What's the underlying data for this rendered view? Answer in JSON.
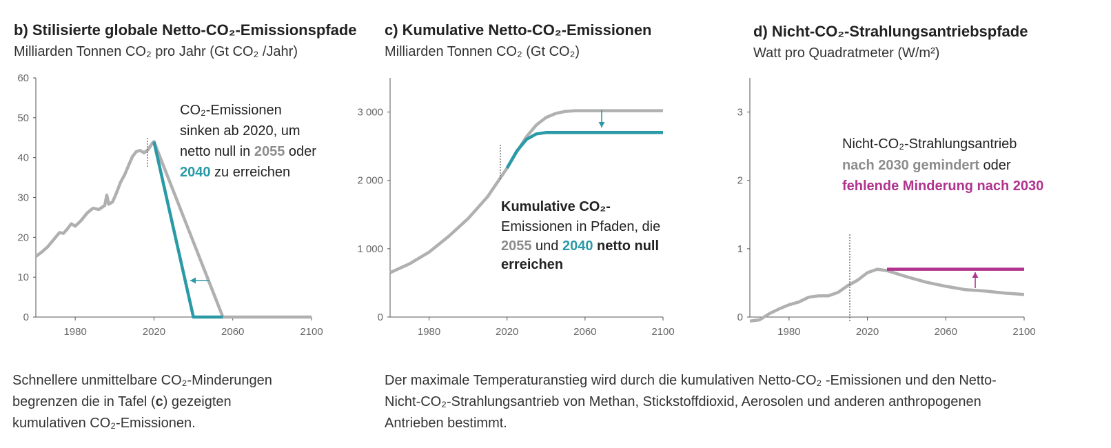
{
  "colors": {
    "grey": "#b0b0b0",
    "teal": "#2a9aa6",
    "magenta": "#b0338e",
    "axis": "#555555"
  },
  "panel_b": {
    "title": "b) Stilisierte globale Netto-CO₂-Emissionspfade",
    "subtitle": "Milliarden Tonnen CO₂ pro Jahr (Gt CO₂ /Jahr)"
  },
  "panel_c": {
    "title": "c) Kumulative Netto-CO₂-Emissionen",
    "subtitle": "Milliarden Tonnen CO₂ (Gt CO₂)"
  },
  "panel_d": {
    "title": "d) Nicht-CO₂-Strahlungsantriebspfade",
    "subtitle": "Watt pro Quadratmeter (W/m²)"
  },
  "captions": {
    "left": [
      "Schnellere unmittelbare CO₂-Minderungen",
      "begrenzen die in Tafel (",
      "c",
      ") gezeigten",
      "kumulativen CO₂-Emissionen."
    ],
    "right": [
      "Der maximale Temperaturanstieg wird durch die kumulativen Netto-CO₂ -Emissionen und den Netto-",
      "Nicht-CO₂-Strahlungsantrieb von Methan, Stickstoffdioxid, Aerosolen und anderen anthropogenen",
      "Antrieben bestimmt."
    ]
  },
  "chart_data": [
    {
      "id": "b",
      "type": "line",
      "xlim": [
        1960,
        2100
      ],
      "ylim": [
        0,
        60
      ],
      "x_ticks": [
        1980,
        2020,
        2060,
        2100
      ],
      "y_ticks": [
        0,
        10,
        20,
        30,
        40,
        50,
        60
      ],
      "series": [
        {
          "color": "grey",
          "points": [
            [
              1960,
              15.2
            ],
            [
              1963,
              16.3
            ],
            [
              1966,
              17.6
            ],
            [
              1969,
              19.4
            ],
            [
              1972,
              21.2
            ],
            [
              1974,
              21.0
            ],
            [
              1976,
              22.1
            ],
            [
              1978,
              23.4
            ],
            [
              1980,
              22.8
            ],
            [
              1983,
              24.2
            ],
            [
              1986,
              26.1
            ],
            [
              1989,
              27.3
            ],
            [
              1992,
              27.0
            ],
            [
              1995,
              28.0
            ],
            [
              1996,
              30.6
            ],
            [
              1997,
              28.3
            ],
            [
              1999,
              28.9
            ],
            [
              2001,
              31.2
            ],
            [
              2003,
              33.8
            ],
            [
              2005,
              35.6
            ],
            [
              2007,
              37.9
            ],
            [
              2009,
              40.2
            ],
            [
              2011,
              41.5
            ],
            [
              2013,
              41.8
            ],
            [
              2015,
              41.2
            ],
            [
              2017,
              42.0
            ],
            [
              2019,
              43.5
            ],
            [
              2020,
              44.0
            ],
            [
              2055,
              0
            ],
            [
              2100,
              0
            ]
          ]
        },
        {
          "color": "teal",
          "points": [
            [
              2020,
              44.0
            ],
            [
              2040,
              0
            ],
            [
              2055,
              0
            ]
          ]
        }
      ],
      "annotation": [
        "CO₂-Emissionen",
        "sinken ab 2020, um",
        "netto null in ",
        "2055",
        " oder",
        "2040",
        " zu erreichen"
      ]
    },
    {
      "id": "c",
      "type": "line",
      "xlim": [
        1960,
        2100
      ],
      "ylim": [
        0,
        3500
      ],
      "x_ticks": [
        1980,
        2020,
        2060,
        2100
      ],
      "y_ticks": [
        0,
        1000,
        2000,
        3000
      ],
      "y_tick_labels": [
        "0",
        "1 000",
        "2 000",
        "3 000"
      ],
      "series": [
        {
          "color": "grey",
          "points": [
            [
              1960,
              650
            ],
            [
              1970,
              780
            ],
            [
              1980,
              950
            ],
            [
              1990,
              1180
            ],
            [
              2000,
              1440
            ],
            [
              2010,
              1760
            ],
            [
              2020,
              2180
            ],
            [
              2025,
              2420
            ],
            [
              2030,
              2640
            ],
            [
              2035,
              2810
            ],
            [
              2040,
              2920
            ],
            [
              2045,
              2980
            ],
            [
              2050,
              3010
            ],
            [
              2055,
              3020
            ],
            [
              2100,
              3020
            ]
          ]
        },
        {
          "color": "teal",
          "points": [
            [
              2020,
              2180
            ],
            [
              2025,
              2430
            ],
            [
              2030,
              2600
            ],
            [
              2035,
              2680
            ],
            [
              2040,
              2700
            ],
            [
              2100,
              2700
            ]
          ]
        }
      ],
      "annotation": [
        "Kumulative CO₂-",
        "Emissionen in Pfaden, die",
        "2055",
        " und ",
        "2040",
        " netto null",
        "erreichen"
      ]
    },
    {
      "id": "d",
      "type": "line",
      "xlim": [
        1960,
        2100
      ],
      "ylim": [
        0,
        3.5
      ],
      "x_ticks": [
        1980,
        2020,
        2060,
        2100
      ],
      "y_ticks": [
        0,
        1,
        2,
        3
      ],
      "series": [
        {
          "color": "grey",
          "points": [
            [
              1960,
              -0.06
            ],
            [
              1965,
              -0.04
            ],
            [
              1970,
              0.05
            ],
            [
              1975,
              0.12
            ],
            [
              1980,
              0.18
            ],
            [
              1985,
              0.22
            ],
            [
              1990,
              0.29
            ],
            [
              1995,
              0.31
            ],
            [
              2000,
              0.31
            ],
            [
              2005,
              0.36
            ],
            [
              2010,
              0.46
            ],
            [
              2015,
              0.54
            ],
            [
              2020,
              0.65
            ],
            [
              2025,
              0.7
            ],
            [
              2030,
              0.68
            ],
            [
              2040,
              0.59
            ],
            [
              2050,
              0.51
            ],
            [
              2060,
              0.45
            ],
            [
              2070,
              0.4
            ],
            [
              2080,
              0.38
            ],
            [
              2090,
              0.35
            ],
            [
              2100,
              0.33
            ]
          ]
        },
        {
          "color": "magenta",
          "points": [
            [
              2030,
              0.7
            ],
            [
              2100,
              0.7
            ]
          ]
        }
      ],
      "annotation": [
        "Nicht-CO₂-Strahlungsantrieb",
        "nach 2030 gemindert",
        " oder",
        "fehlende Minderung nach 2030"
      ]
    }
  ]
}
